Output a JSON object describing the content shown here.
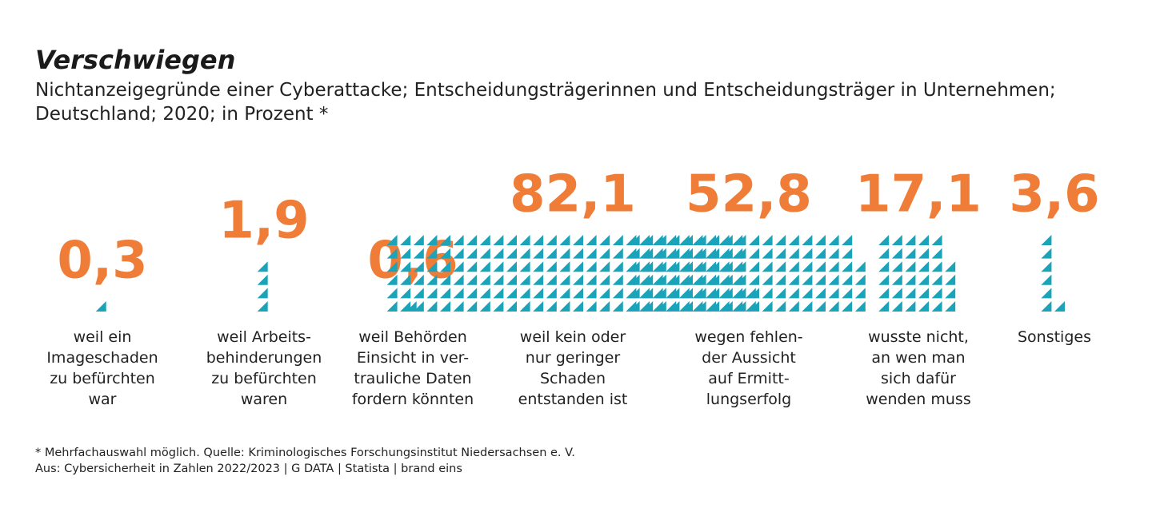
{
  "title": "Verschwiegen",
  "subtitle": "Nichtanzeigegründe einer Cyberattacke; Entscheidungsträgerinnen und Entscheidungsträger in Unternehmen; Deutschland; 2020; in Prozent *",
  "footnote": {
    "line1": "* Mehrfachauswahl möglich. Quelle: Kriminologisches Forschungsinstitut Niedersachsen e. V.",
    "line2": "Aus: Cybersicherheit in Zahlen 2022/2023 | G DATA | Statista | brand eins"
  },
  "colors": {
    "value": "#ef7d38",
    "marks": "#1aa3b9"
  },
  "chart_data": {
    "type": "bar",
    "title": "Verschwiegen",
    "unit": "Prozent",
    "categories": [
      "weil ein Imageschaden zu befürchten war",
      "weil Arbeitsbehinderungen zu befürchten waren",
      "weil Behörden Einsicht in vertrauliche Daten fordern könnten",
      "weil kein oder nur geringer Schaden entstanden ist",
      "wegen fehlender Aussicht auf Ermittlungserfolg",
      "wusste nicht, an wen man sich dafür wenden muss",
      "Sonstiges"
    ],
    "category_label_lines": [
      [
        "weil ein",
        "Imageschaden",
        "zu befürchten",
        "war"
      ],
      [
        "weil Arbeits-",
        "behinderungen",
        "zu befürchten",
        "waren"
      ],
      [
        "weil Behörden",
        "Einsicht in ver-",
        "trauliche Daten",
        "fordern könnten"
      ],
      [
        "weil kein oder",
        "nur geringer",
        "Schaden",
        "entstanden ist"
      ],
      [
        "wegen fehlen-",
        "der Aussicht",
        "auf Ermitt-",
        "lungserfolg"
      ],
      [
        "wusste nicht,",
        "an wen man",
        "sich dafür",
        "wenden muss"
      ],
      [
        "Sonstiges"
      ]
    ],
    "value_labels": [
      "0,3",
      "1,9",
      "0,6",
      "82,1",
      "52,8",
      "17,1",
      "3,6"
    ],
    "values": [
      0.3,
      1.9,
      0.6,
      82.1,
      52.8,
      17.1,
      3.6
    ]
  }
}
